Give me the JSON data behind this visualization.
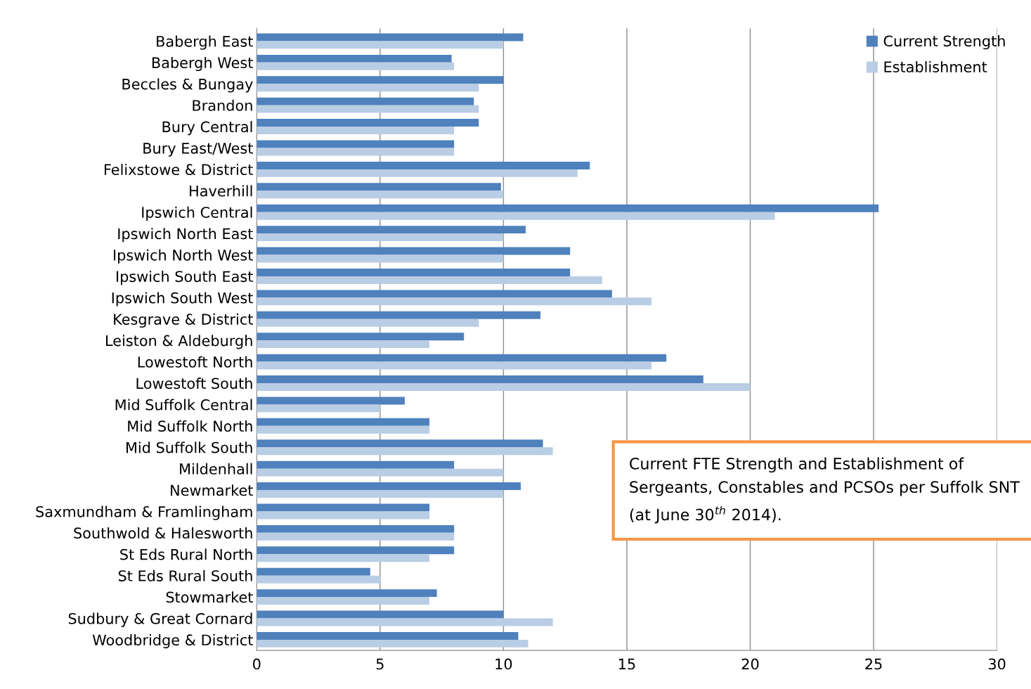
{
  "chart_data": {
    "type": "bar",
    "orientation": "horizontal",
    "categories": [
      "Babergh East",
      "Babergh West",
      "Beccles & Bungay",
      "Brandon",
      "Bury Central",
      "Bury East/West",
      "Felixstowe & District",
      "Haverhill",
      "Ipswich Central",
      "Ipswich North East",
      "Ipswich North West",
      "Ipswich South East",
      "Ipswich South West",
      "Kesgrave & District",
      "Leiston & Aldeburgh",
      "Lowestoft North",
      "Lowestoft South",
      "Mid Suffolk Central",
      "Mid Suffolk North",
      "Mid Suffolk South",
      "Mildenhall",
      "Newmarket",
      "Saxmundham & Framlingham",
      "Southwold & Halesworth",
      "St Eds Rural North",
      "St Eds Rural South",
      "Stowmarket",
      "Sudbury & Great Cornard",
      "Woodbridge & District"
    ],
    "series": [
      {
        "name": "Current Strength",
        "color": "#4f81bd",
        "values": [
          10.8,
          7.9,
          10,
          8.8,
          9,
          8,
          13.5,
          9.9,
          25.2,
          10.9,
          12.7,
          12.7,
          14.4,
          11.5,
          8.4,
          16.6,
          18.1,
          6,
          7,
          11.6,
          8,
          10.7,
          7,
          8,
          8,
          4.6,
          7.3,
          10,
          10.6
        ]
      },
      {
        "name": "Establishment",
        "color": "#b9cde5",
        "values": [
          10,
          8,
          9,
          9,
          8,
          8,
          13,
          10,
          21,
          10,
          10,
          14,
          16,
          9,
          7,
          16,
          20,
          5,
          7,
          12,
          10,
          10,
          7,
          8,
          7,
          5,
          7,
          12,
          11
        ]
      }
    ],
    "xlim": [
      0,
      30
    ],
    "xticks": [
      0,
      5,
      10,
      15,
      20,
      25,
      30
    ],
    "grid": "x",
    "legend": "top right",
    "annotations": [
      "Current FTE Strength and Establishment of Sergeants, Constables and PCSOs per Suffolk SNT (at June 30$^{th}$ 2014)."
    ]
  }
}
